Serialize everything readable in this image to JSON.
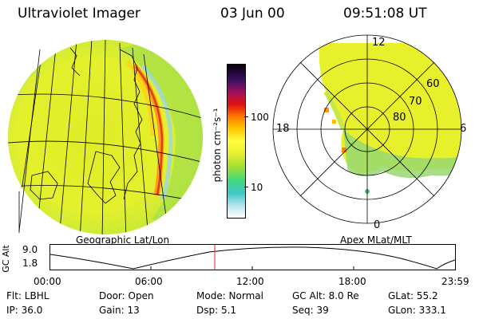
{
  "header": {
    "title": "Ultraviolet Imager",
    "date": "03 Jun 00",
    "time": "09:51:08 UT"
  },
  "colorbar": {
    "unit_label": "photon cm⁻²s⁻¹",
    "ticks": [
      "100",
      "10"
    ],
    "colors": [
      "#0a0010",
      "#3a1060",
      "#a01060",
      "#e01010",
      "#ff7a00",
      "#ffc800",
      "#ffff40",
      "#e8f030",
      "#a8e030",
      "#40d880",
      "#40c8c8",
      "#c0e8f0",
      "#ffffff"
    ]
  },
  "left_panel": {
    "caption": "Geographic Lat/Lon"
  },
  "right_panel": {
    "caption": "Apex MLat/MLT",
    "mlt_labels": {
      "top": "12",
      "left": "18",
      "right": "6",
      "bottom": "0"
    },
    "lat_labels": [
      "60",
      "70",
      "80"
    ]
  },
  "altitude_plot": {
    "ylabel": "GC Alt",
    "yticks": [
      "9.0",
      "1.8"
    ],
    "xticks": [
      "00:00",
      "06:00",
      "12:00",
      "18:00",
      "23:59"
    ],
    "marker_color": "#dd2222"
  },
  "info": {
    "row1": [
      "Flt: LBHL",
      "Door: Open",
      "Mode: Normal",
      "GC Alt: 8.0 Re",
      "GLat: 55.2"
    ],
    "row2": [
      "IP: 36.0",
      "Gain: 13",
      "Dsp: 5.1",
      "Seq: 39",
      "GLon: 333.1"
    ]
  }
}
